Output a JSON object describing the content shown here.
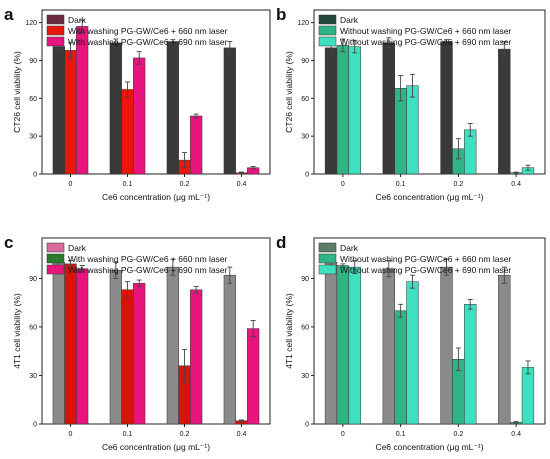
{
  "chart_data": [
    {
      "type": "bar",
      "panel_label": "a",
      "categories": [
        "0",
        "0.1",
        "0.2",
        "0.4"
      ],
      "xlabel": "Ce6 concentration (μg mL⁻¹)",
      "ylabel": "CT26 cell viability (%)",
      "ylim": [
        0,
        130
      ],
      "yticks": [
        "0",
        "30",
        "60",
        "90",
        "120"
      ],
      "legend_position": "top-left",
      "series": [
        {
          "name": "Dark",
          "color": "#3a3a3a",
          "legend_color": "#6b2a3f",
          "values": [
            101,
            104,
            105,
            100
          ],
          "errors": [
            3,
            3,
            1.5,
            5
          ]
        },
        {
          "name": "With washing PG-GW/Ce6 + 660 nm laser",
          "color": "#e8160c",
          "legend_color": "#e8160c",
          "values": [
            98,
            67,
            11,
            1
          ],
          "errors": [
            6,
            6,
            6,
            0.5
          ]
        },
        {
          "name": "With washing PG-GW/Ce6 + 690 nm laser",
          "color": "#e8157e",
          "legend_color": "#e8157e",
          "values": [
            117,
            92,
            46,
            5
          ],
          "errors": [
            5,
            5,
            1.5,
            1
          ]
        }
      ]
    },
    {
      "type": "bar",
      "panel_label": "b",
      "categories": [
        "0",
        "0.1",
        "0.2",
        "0.4"
      ],
      "xlabel": "Ce6 concentration (μg mL⁻¹)",
      "ylabel": "CT26 cell viability (%)",
      "ylim": [
        0,
        130
      ],
      "yticks": [
        "0",
        "30",
        "60",
        "90",
        "120"
      ],
      "legend_position": "top-left",
      "series": [
        {
          "name": "Dark",
          "color": "#3a3a3a",
          "legend_color": "#1f4a3a",
          "values": [
            100,
            104,
            105,
            99
          ],
          "errors": [
            4,
            4,
            1.5,
            6
          ]
        },
        {
          "name": "Without washing PG-GW/Ce6 + 660 nm laser",
          "color": "#2fb585",
          "legend_color": "#2fb585",
          "values": [
            102,
            68,
            20,
            1
          ],
          "errors": [
            5,
            10,
            8,
            0.5
          ]
        },
        {
          "name": "Without washing PG-GW/Ce6 + 690 nm laser",
          "color": "#3fe0c0",
          "legend_color": "#3fe0c0",
          "values": [
            101,
            70,
            35,
            5
          ],
          "errors": [
            5,
            9,
            5,
            2
          ]
        }
      ]
    },
    {
      "type": "bar",
      "panel_label": "c",
      "categories": [
        "0",
        "0.1",
        "0.2",
        "0.4"
      ],
      "xlabel": "Ce6 concentration (μg mL⁻¹)",
      "ylabel": "4T1 cell viability (%)",
      "ylim": [
        0,
        115
      ],
      "yticks": [
        "0",
        "30",
        "60",
        "90"
      ],
      "legend_position": "top-left",
      "series": [
        {
          "name": "Dark",
          "color": "#8a8a8a",
          "legend_color": "#d86a9a",
          "values": [
            100,
            95,
            97,
            92
          ],
          "errors": [
            2,
            5,
            5,
            5
          ]
        },
        {
          "name": "With washing PG-GW/Ce6 + 660 nm laser",
          "color": "#d81408",
          "legend_color": "#2a7a2a",
          "values": [
            99,
            83,
            36,
            2
          ],
          "errors": [
            2,
            5,
            10,
            0.5
          ]
        },
        {
          "name": "With washing PG-GW/Ce6 + 690 nm laser",
          "color": "#e8157e",
          "legend_color": "#e8157e",
          "values": [
            96,
            87,
            83,
            59
          ],
          "errors": [
            2,
            2,
            2,
            5
          ]
        }
      ]
    },
    {
      "type": "bar",
      "panel_label": "d",
      "categories": [
        "0",
        "0.1",
        "0.2",
        "0.4"
      ],
      "xlabel": "Ce6 concentration (μg mL⁻¹)",
      "ylabel": "4T1 cell viability (%)",
      "ylim": [
        0,
        115
      ],
      "yticks": [
        "0",
        "30",
        "60",
        "90"
      ],
      "legend_position": "top-left",
      "series": [
        {
          "name": "Dark",
          "color": "#8a8a8a",
          "legend_color": "#5a7a6a",
          "values": [
            100,
            96,
            97,
            92
          ],
          "errors": [
            3,
            5,
            5,
            5
          ]
        },
        {
          "name": "Without washing PG-GW/Ce6 + 660 nm laser",
          "color": "#2fb585",
          "legend_color": "#2fb585",
          "values": [
            98,
            70,
            40,
            1
          ],
          "errors": [
            1,
            4,
            7,
            0.5
          ]
        },
        {
          "name": "Without washing PG-GW/Ce6 + 690 nm laser",
          "color": "#3fe0c0",
          "legend_color": "#3fe0c0",
          "values": [
            97,
            88,
            74,
            35
          ],
          "errors": [
            4,
            4,
            3,
            4
          ]
        }
      ]
    }
  ]
}
